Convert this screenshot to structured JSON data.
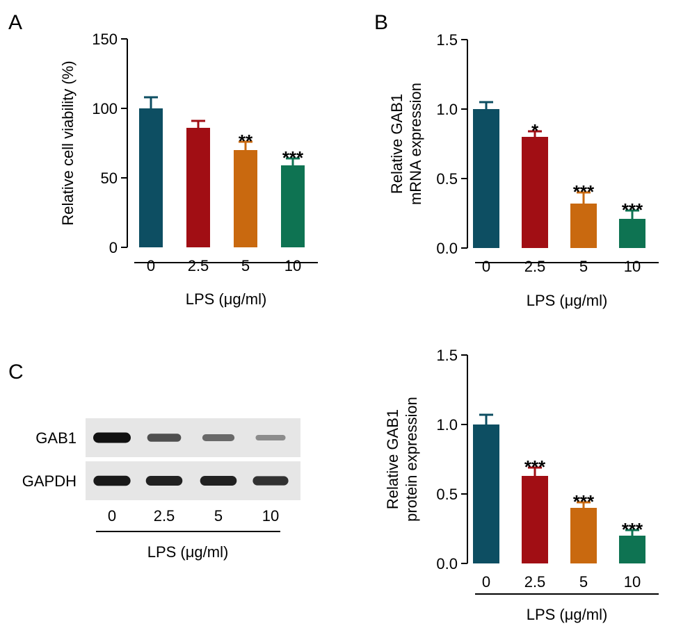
{
  "panels": {
    "A": {
      "label": "A"
    },
    "B": {
      "label": "B"
    },
    "C": {
      "label": "C"
    }
  },
  "blot": {
    "rows": [
      {
        "name": "GAB1",
        "intensity": [
          1.0,
          0.62,
          0.45,
          0.22
        ]
      },
      {
        "name": "GAPDH",
        "intensity": [
          0.95,
          0.9,
          0.9,
          0.8
        ]
      }
    ],
    "lanes": [
      "0",
      "2.5",
      "5",
      "10"
    ],
    "xlabel": "LPS (μg/ml)"
  },
  "colors": {
    "bars": [
      "#0d4e62",
      "#a10e14",
      "#c9690f",
      "#0e7352"
    ],
    "error": [
      "#0d4e62",
      "#a10e14",
      "#c9690f",
      "#0e7352"
    ]
  },
  "chart_data": [
    {
      "type": "bar",
      "categories": [
        "0",
        "2.5",
        "5",
        "10"
      ],
      "values": [
        100,
        86,
        70,
        59
      ],
      "errors": [
        8,
        5,
        6,
        5
      ],
      "significance": [
        "",
        "",
        "**",
        "***"
      ],
      "xlabel": "LPS (μg/ml)",
      "ylabel": "Relative cell viability (%)",
      "ylim": [
        0,
        150
      ],
      "yticks": [
        "0",
        "50",
        "100",
        "150"
      ],
      "grid": false
    },
    {
      "type": "bar",
      "categories": [
        "0",
        "2.5",
        "5",
        "10"
      ],
      "values": [
        1.0,
        0.8,
        0.32,
        0.21
      ],
      "errors": [
        0.05,
        0.04,
        0.08,
        0.06
      ],
      "significance": [
        "",
        "*",
        "***",
        "***"
      ],
      "xlabel": "LPS (μg/ml)",
      "ylabel": [
        "Relative GAB1",
        "mRNA expression"
      ],
      "ylim": [
        0,
        1.5
      ],
      "yticks": [
        "0.0",
        "0.5",
        "1.0",
        "1.5"
      ],
      "grid": false
    },
    {
      "type": "bar",
      "categories": [
        "0",
        "2.5",
        "5",
        "10"
      ],
      "values": [
        1.0,
        0.63,
        0.4,
        0.2
      ],
      "errors": [
        0.07,
        0.06,
        0.04,
        0.04
      ],
      "significance": [
        "",
        "***",
        "***",
        "***"
      ],
      "xlabel": "LPS (μg/ml)",
      "ylabel": [
        "Relative GAB1",
        "protein expression"
      ],
      "ylim": [
        0,
        1.5
      ],
      "yticks": [
        "0.0",
        "0.5",
        "1.0",
        "1.5"
      ],
      "grid": false
    }
  ]
}
